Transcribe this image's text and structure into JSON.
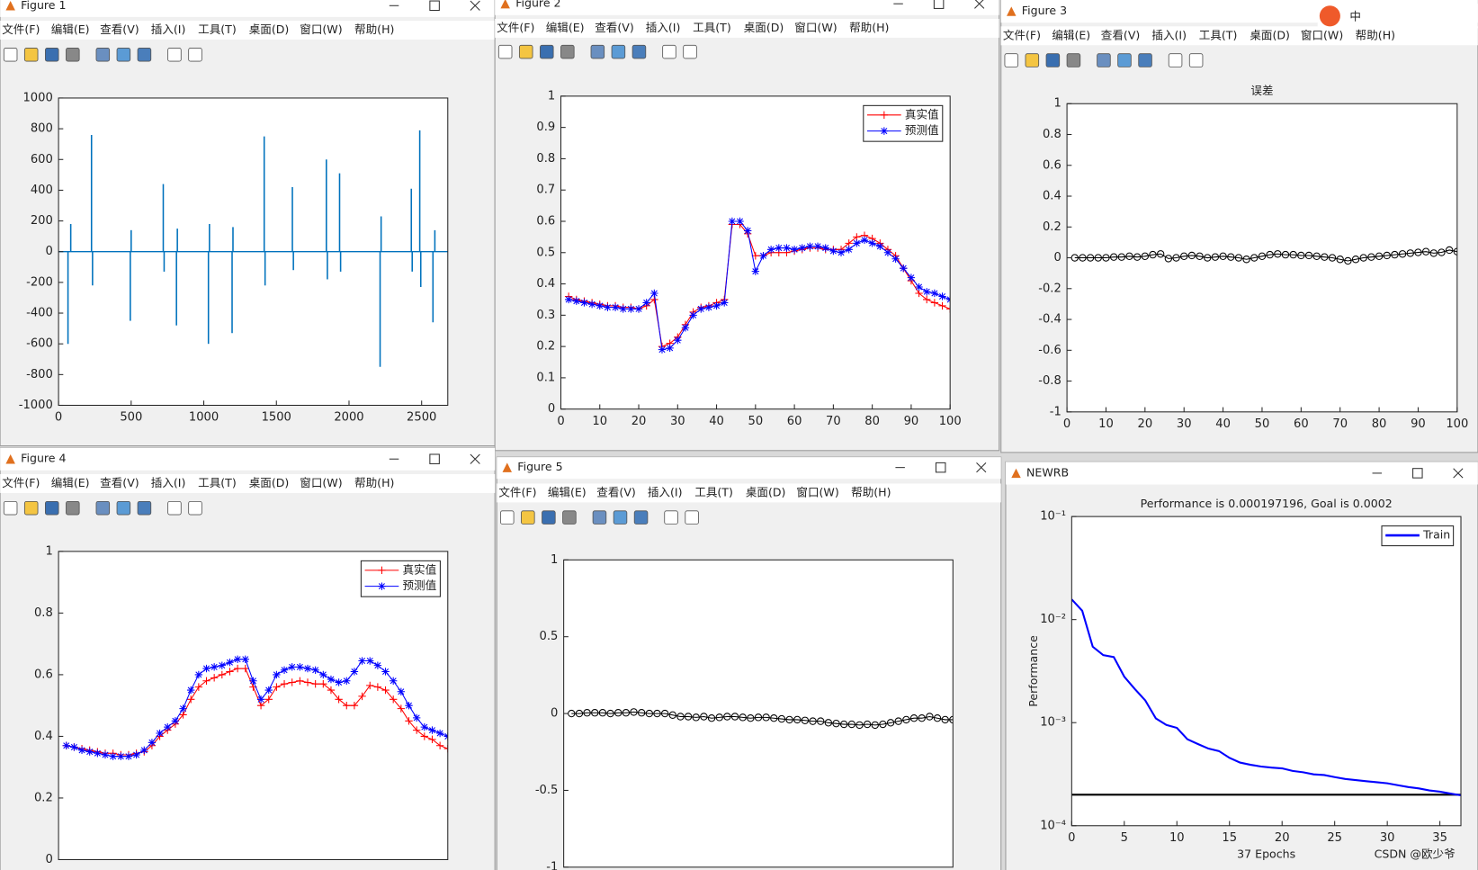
{
  "windows": [
    {
      "title": "Figure 1",
      "menu": [
        "文件(F)",
        "编辑(E)",
        "查看(V)",
        "插入(I)",
        "工具(T)",
        "桌面(D)",
        "窗口(W)",
        "帮助(H)"
      ],
      "chart": {
        "type": "stem",
        "color": "#0072bd",
        "x": [
          65,
          84,
          227,
          234,
          494,
          500,
          721,
          727,
          812,
          818,
          1032,
          1039,
          1195,
          1201,
          1416,
          1422,
          1610,
          1617,
          1844,
          1851,
          1935,
          1942,
          2214,
          2221,
          2429,
          2435,
          2487,
          2494,
          2578,
          2591
        ],
        "values": [
          -600,
          180,
          760,
          -220,
          -450,
          140,
          440,
          -130,
          -480,
          150,
          -600,
          180,
          -530,
          160,
          750,
          -220,
          420,
          -120,
          600,
          -180,
          510,
          -130,
          -750,
          230,
          410,
          -130,
          790,
          -230,
          -460,
          140
        ],
        "xlim": [
          0,
          2680
        ],
        "ylim": [
          -1000,
          1000
        ],
        "xticks": [
          0,
          500,
          1000,
          1500,
          2000,
          2500
        ],
        "yticks": [
          -1000,
          -800,
          -600,
          -400,
          -200,
          0,
          200,
          400,
          600,
          800,
          1000
        ]
      }
    },
    {
      "title": "Figure 2",
      "menu": [
        "文件(F)",
        "编辑(E)",
        "查看(V)",
        "插入(I)",
        "工具(T)",
        "桌面(D)",
        "窗口(W)",
        "帮助(H)"
      ],
      "chart": {
        "type": "line",
        "legend": "top-right",
        "x": [
          2,
          4,
          6,
          8,
          10,
          12,
          14,
          16,
          18,
          20,
          22,
          24,
          26,
          28,
          30,
          32,
          34,
          36,
          38,
          40,
          42,
          44,
          46,
          48,
          50,
          52,
          54,
          56,
          58,
          60,
          62,
          64,
          66,
          68,
          70,
          72,
          74,
          76,
          78,
          80,
          82,
          84,
          86,
          88,
          90,
          92,
          94,
          96,
          98,
          100
        ],
        "series": [
          {
            "name": "真实值",
            "color": "#ff0000",
            "marker": "+",
            "values": [
              0.36,
              0.35,
              0.345,
              0.34,
              0.335,
              0.33,
              0.33,
              0.325,
              0.325,
              0.32,
              0.33,
              0.35,
              0.2,
              0.21,
              0.23,
              0.27,
              0.31,
              0.325,
              0.33,
              0.34,
              0.35,
              0.59,
              0.59,
              0.56,
              0.49,
              0.49,
              0.5,
              0.5,
              0.5,
              0.505,
              0.51,
              0.515,
              0.515,
              0.51,
              0.51,
              0.51,
              0.53,
              0.55,
              0.555,
              0.545,
              0.53,
              0.51,
              0.49,
              0.45,
              0.41,
              0.37,
              0.35,
              0.34,
              0.33,
              0.32
            ]
          },
          {
            "name": "预测值",
            "color": "#0000ff",
            "marker": "*",
            "values": [
              0.35,
              0.345,
              0.34,
              0.335,
              0.33,
              0.325,
              0.325,
              0.32,
              0.32,
              0.32,
              0.34,
              0.37,
              0.19,
              0.195,
              0.22,
              0.26,
              0.3,
              0.32,
              0.325,
              0.33,
              0.34,
              0.6,
              0.6,
              0.57,
              0.44,
              0.49,
              0.51,
              0.515,
              0.515,
              0.51,
              0.515,
              0.52,
              0.52,
              0.515,
              0.505,
              0.5,
              0.51,
              0.53,
              0.54,
              0.53,
              0.52,
              0.5,
              0.48,
              0.45,
              0.42,
              0.39,
              0.375,
              0.37,
              0.36,
              0.35
            ]
          }
        ],
        "xlim": [
          0,
          100
        ],
        "ylim": [
          0,
          1
        ],
        "xticks": [
          0,
          10,
          20,
          30,
          40,
          50,
          60,
          70,
          80,
          90,
          100
        ],
        "yticks": [
          0,
          0.1,
          0.2,
          0.3,
          0.4,
          0.5,
          0.6,
          0.7,
          0.8,
          0.9,
          1
        ]
      }
    },
    {
      "title": "Figure 3",
      "menu": [
        "文件(F)",
        "编辑(E)",
        "查看(V)",
        "插入(I)",
        "工具(T)",
        "桌面(D)",
        "窗口(W)",
        "帮助(H)"
      ],
      "chart": {
        "type": "line",
        "title": "误差",
        "x": [
          2,
          4,
          6,
          8,
          10,
          12,
          14,
          16,
          18,
          20,
          22,
          24,
          26,
          28,
          30,
          32,
          34,
          36,
          38,
          40,
          42,
          44,
          46,
          48,
          50,
          52,
          54,
          56,
          58,
          60,
          62,
          64,
          66,
          68,
          70,
          72,
          74,
          76,
          78,
          80,
          82,
          84,
          86,
          88,
          90,
          92,
          94,
          96,
          98,
          100
        ],
        "series": [
          {
            "color": "#000000",
            "marker": "o",
            "values": [
              0,
              0,
              0,
              0,
              0,
              0.005,
              0.005,
              0.01,
              0.005,
              0.01,
              0.02,
              0.025,
              -0.005,
              0,
              0.01,
              0.015,
              0.01,
              0,
              0.005,
              0.01,
              0.005,
              0,
              -0.01,
              0,
              0.01,
              0.02,
              0.025,
              0.02,
              0.02,
              0.015,
              0.015,
              0.01,
              0.005,
              0,
              -0.01,
              -0.02,
              -0.01,
              0,
              0.005,
              0.01,
              0.015,
              0.02,
              0.025,
              0.03,
              0.035,
              0.04,
              0.03,
              0.035,
              0.05,
              0.04
            ]
          }
        ],
        "xlim": [
          0,
          100
        ],
        "ylim": [
          -1,
          1
        ],
        "xticks": [
          0,
          10,
          20,
          30,
          40,
          50,
          60,
          70,
          80,
          90,
          100
        ],
        "yticks": [
          -1,
          -0.8,
          -0.6,
          -0.4,
          -0.2,
          0,
          0.2,
          0.4,
          0.6,
          0.8,
          1
        ]
      }
    },
    {
      "title": "Figure 4",
      "menu": [
        "文件(F)",
        "编辑(E)",
        "查看(V)",
        "插入(I)",
        "工具(T)",
        "桌面(D)",
        "窗口(W)",
        "帮助(H)"
      ],
      "chart": {
        "type": "line",
        "legend": "top-right",
        "x": [
          2,
          4,
          6,
          8,
          10,
          12,
          14,
          16,
          18,
          20,
          22,
          24,
          26,
          28,
          30,
          32,
          34,
          36,
          38,
          40,
          42,
          44,
          46,
          48,
          50,
          52,
          54,
          56,
          58,
          60,
          62,
          64,
          66,
          68,
          70,
          72,
          74,
          76,
          78,
          80,
          82,
          84,
          86,
          88,
          90,
          92,
          94,
          96,
          98,
          100
        ],
        "series": [
          {
            "name": "真实值",
            "color": "#ff0000",
            "marker": "+",
            "values": [
              0.37,
              0.365,
              0.36,
              0.355,
              0.35,
              0.345,
              0.345,
              0.34,
              0.34,
              0.345,
              0.35,
              0.37,
              0.4,
              0.42,
              0.44,
              0.47,
              0.52,
              0.56,
              0.58,
              0.59,
              0.6,
              0.61,
              0.62,
              0.62,
              0.56,
              0.5,
              0.52,
              0.56,
              0.57,
              0.575,
              0.58,
              0.575,
              0.57,
              0.57,
              0.55,
              0.52,
              0.5,
              0.5,
              0.53,
              0.565,
              0.56,
              0.55,
              0.52,
              0.49,
              0.45,
              0.42,
              0.4,
              0.39,
              0.37,
              0.36
            ]
          },
          {
            "name": "预测值",
            "color": "#0000ff",
            "marker": "*",
            "values": [
              0.37,
              0.365,
              0.355,
              0.35,
              0.345,
              0.34,
              0.335,
              0.335,
              0.335,
              0.34,
              0.355,
              0.38,
              0.41,
              0.43,
              0.45,
              0.49,
              0.55,
              0.6,
              0.62,
              0.625,
              0.63,
              0.64,
              0.65,
              0.65,
              0.58,
              0.52,
              0.55,
              0.6,
              0.615,
              0.625,
              0.625,
              0.62,
              0.615,
              0.6,
              0.585,
              0.575,
              0.58,
              0.61,
              0.645,
              0.645,
              0.63,
              0.61,
              0.58,
              0.545,
              0.5,
              0.46,
              0.43,
              0.42,
              0.41,
              0.4
            ]
          }
        ],
        "xlim": [
          0,
          100
        ],
        "ylim": [
          0,
          1
        ],
        "yticks": [
          0,
          0.2,
          0.4,
          0.6,
          0.8,
          1
        ]
      }
    },
    {
      "title": "Figure 5",
      "menu": [
        "文件(F)",
        "编辑(E)",
        "查看(V)",
        "插入(I)",
        "工具(T)",
        "桌面(D)",
        "窗口(W)",
        "帮助(H)"
      ],
      "chart": {
        "type": "line",
        "x": [
          2,
          4,
          6,
          8,
          10,
          12,
          14,
          16,
          18,
          20,
          22,
          24,
          26,
          28,
          30,
          32,
          34,
          36,
          38,
          40,
          42,
          44,
          46,
          48,
          50,
          52,
          54,
          56,
          58,
          60,
          62,
          64,
          66,
          68,
          70,
          72,
          74,
          76,
          78,
          80,
          82,
          84,
          86,
          88,
          90,
          92,
          94,
          96,
          98,
          100
        ],
        "series": [
          {
            "color": "#000000",
            "marker": "o",
            "values": [
              0,
              0,
              0.005,
              0.005,
              0.005,
              0,
              0.005,
              0.005,
              0.01,
              0.005,
              0,
              0,
              0,
              -0.01,
              -0.02,
              -0.02,
              -0.025,
              -0.02,
              -0.03,
              -0.025,
              -0.02,
              -0.02,
              -0.025,
              -0.03,
              -0.025,
              -0.025,
              -0.03,
              -0.035,
              -0.04,
              -0.04,
              -0.045,
              -0.05,
              -0.05,
              -0.06,
              -0.065,
              -0.07,
              -0.07,
              -0.075,
              -0.07,
              -0.075,
              -0.07,
              -0.06,
              -0.05,
              -0.04,
              -0.03,
              -0.03,
              -0.02,
              -0.03,
              -0.04,
              -0.04
            ]
          }
        ],
        "xlim": [
          0,
          100
        ],
        "ylim": [
          -1,
          1
        ],
        "yticks": [
          -1,
          -0.5,
          0,
          0.5,
          1
        ]
      }
    },
    {
      "title": "NEWRB",
      "chart": {
        "type": "line",
        "log_y": true,
        "legend": "top-right",
        "title": "Performance is 0.000197196, Goal is 0.0002",
        "xlabel": "37 Epochs",
        "ylabel": "Performance",
        "x": [
          0,
          1,
          2,
          3,
          4,
          5,
          6,
          7,
          8,
          9,
          10,
          11,
          12,
          13,
          14,
          15,
          16,
          17,
          18,
          19,
          20,
          21,
          22,
          23,
          24,
          25,
          26,
          27,
          28,
          29,
          30,
          31,
          32,
          33,
          34,
          35,
          36,
          37
        ],
        "series": [
          {
            "name": "Train",
            "color": "#0000ff",
            "values": [
              0.0157,
              0.0122,
              0.00546,
              0.00452,
              0.00433,
              0.00279,
              0.00212,
              0.00164,
              0.0011,
              0.00095,
              0.00089,
              0.00069,
              0.00062,
              0.00056,
              0.00053,
              0.000455,
              0.00041,
              0.00039,
              0.000375,
              0.000366,
              0.00036,
              0.00034,
              0.00033,
              0.000315,
              0.00031,
              0.000296,
              0.000284,
              0.000277,
              0.00027,
              0.000264,
              0.000258,
              0.000247,
              0.000237,
              0.00023,
              0.00022,
              0.000214,
              0.000205,
              0.000197196
            ]
          }
        ],
        "goal": {
          "value": 0.0002,
          "color": "#000000"
        },
        "xlim": [
          0,
          37
        ],
        "ylim": [
          0.0001,
          0.1
        ],
        "xticks": [
          0,
          5,
          10,
          15,
          20,
          25,
          30,
          35
        ],
        "yticks": [
          {
            "value": 0.0001,
            "label": "10⁻⁴"
          },
          {
            "value": 0.001,
            "label": "10⁻³"
          },
          {
            "value": 0.01,
            "label": "10⁻²"
          },
          {
            "value": 0.1,
            "label": "10⁻¹"
          }
        ]
      }
    }
  ],
  "ime": "中",
  "watermark": "CSDN @欧少爷"
}
